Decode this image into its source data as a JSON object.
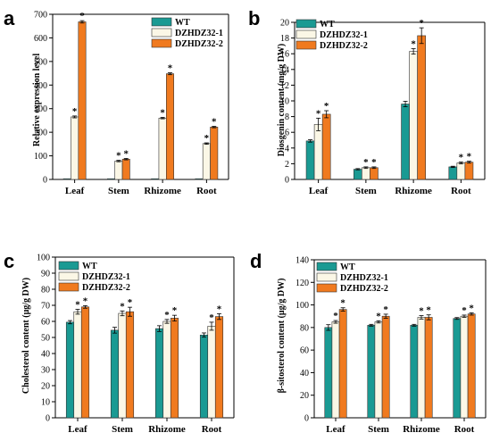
{
  "colors": {
    "WT": "#1a9a93",
    "DZHDZ32-1": "#fbf7e6",
    "DZHDZ32-2": "#f07a1f",
    "axis": "#000000",
    "bar_stroke": "#222222"
  },
  "chart_data": [
    {
      "panel": "a",
      "type": "bar",
      "title": "",
      "xlabel": "",
      "ylabel": "Relative expression level",
      "ylim": [
        0,
        700
      ],
      "yticks": [
        0,
        100,
        200,
        300,
        400,
        500,
        600,
        700
      ],
      "categories": [
        "Leaf",
        "Stem",
        "Rhizome",
        "Root"
      ],
      "legend_position": "top-right",
      "series": [
        {
          "name": "WT",
          "values": [
            1,
            1,
            1,
            1
          ],
          "errors": [
            0,
            0,
            0,
            0
          ],
          "stars": [
            false,
            false,
            false,
            false
          ]
        },
        {
          "name": "DZHDZ32-1",
          "values": [
            265,
            78,
            260,
            152
          ],
          "errors": [
            4,
            3,
            3,
            3
          ],
          "stars": [
            true,
            true,
            true,
            true
          ]
        },
        {
          "name": "DZHDZ32-2",
          "values": [
            668,
            86,
            448,
            222
          ],
          "errors": [
            5,
            3,
            4,
            3
          ],
          "stars": [
            true,
            true,
            true,
            true
          ]
        }
      ]
    },
    {
      "panel": "b",
      "type": "bar",
      "title": "",
      "xlabel": "",
      "ylabel": "Diosgenin content (mg/g DW)",
      "ylim": [
        0,
        20
      ],
      "yticks": [
        0,
        2,
        4,
        6,
        8,
        10,
        12,
        14,
        16,
        18,
        20
      ],
      "categories": [
        "Leaf",
        "Stem",
        "Rhizome",
        "Root"
      ],
      "legend_position": "top-left",
      "series": [
        {
          "name": "WT",
          "values": [
            4.9,
            1.3,
            9.6,
            1.6
          ],
          "errors": [
            0.15,
            0.08,
            0.35,
            0.08
          ],
          "stars": [
            false,
            false,
            false,
            false
          ]
        },
        {
          "name": "DZHDZ32-1",
          "values": [
            7.0,
            1.5,
            16.3,
            2.1
          ],
          "errors": [
            0.8,
            0.1,
            0.35,
            0.12
          ],
          "stars": [
            true,
            true,
            true,
            true
          ]
        },
        {
          "name": "DZHDZ32-2",
          "values": [
            8.3,
            1.5,
            18.3,
            2.2
          ],
          "errors": [
            0.45,
            0.1,
            1.0,
            0.12
          ],
          "stars": [
            true,
            true,
            true,
            true
          ]
        }
      ]
    },
    {
      "panel": "c",
      "type": "bar",
      "title": "",
      "xlabel": "",
      "ylabel": "Cholesterol content (μg/g DW)",
      "ylim": [
        0,
        100
      ],
      "yticks": [
        0,
        10,
        20,
        30,
        40,
        50,
        60,
        70,
        80,
        90,
        100
      ],
      "categories": [
        "Leaf",
        "Stem",
        "Rhizome",
        "Root"
      ],
      "legend_position": "top-left",
      "series": [
        {
          "name": "WT",
          "values": [
            59.5,
            54.5,
            55.5,
            51.5
          ],
          "errors": [
            1.0,
            1.8,
            1.8,
            1.3
          ],
          "stars": [
            false,
            false,
            false,
            false
          ]
        },
        {
          "name": "DZHDZ32-1",
          "values": [
            66,
            65,
            60,
            57
          ],
          "errors": [
            1.5,
            1.5,
            1.2,
            2.5
          ],
          "stars": [
            true,
            true,
            true,
            true
          ]
        },
        {
          "name": "DZHDZ32-2",
          "values": [
            69,
            66,
            62,
            63
          ],
          "errors": [
            0.8,
            2.8,
            1.8,
            1.8
          ],
          "stars": [
            true,
            true,
            true,
            true
          ]
        }
      ]
    },
    {
      "panel": "d",
      "type": "bar",
      "title": "",
      "xlabel": "",
      "ylabel": "β-sitosterol content (μg/g DW)",
      "ylim": [
        0,
        140
      ],
      "yticks": [
        0,
        20,
        40,
        60,
        80,
        100,
        120,
        140
      ],
      "categories": [
        "Leaf",
        "Stem",
        "Rhizome",
        "Root"
      ],
      "legend_position": "top-left",
      "series": [
        {
          "name": "WT",
          "values": [
            80,
            82,
            82,
            88
          ],
          "errors": [
            2.5,
            0.8,
            0.8,
            0.8
          ],
          "stars": [
            false,
            false,
            false,
            false
          ]
        },
        {
          "name": "DZHDZ32-1",
          "values": [
            85,
            85,
            89,
            90
          ],
          "errors": [
            1.2,
            1.0,
            1.5,
            1.0
          ],
          "stars": [
            true,
            true,
            true,
            true
          ]
        },
        {
          "name": "DZHDZ32-2",
          "values": [
            96,
            90,
            89,
            92
          ],
          "errors": [
            1.5,
            1.8,
            2.2,
            1.0
          ],
          "stars": [
            true,
            true,
            true,
            true
          ]
        }
      ]
    }
  ]
}
